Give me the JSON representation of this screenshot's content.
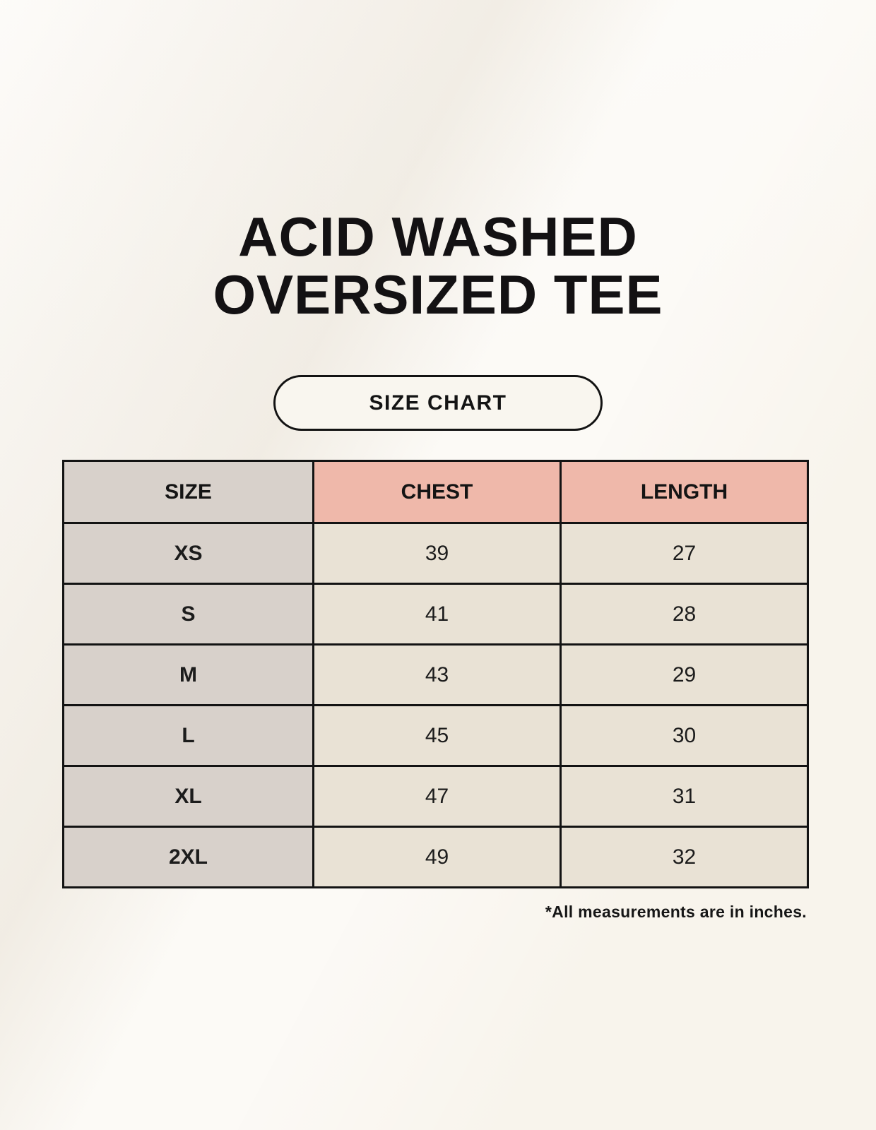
{
  "page": {
    "title_line1": "ACID WASHED",
    "title_line2": "OVERSIZED TEE",
    "button_label": "SIZE CHART",
    "footnote": "*All measurements are in inches."
  },
  "colors": {
    "background_cream": "#f8f4ec",
    "header_pink": "#efb8aa",
    "size_column_gray": "#d8d1cb",
    "cell_beige": "#e9e2d5",
    "table_border_black": "#131313",
    "text_black": "#141414"
  },
  "chart_data": {
    "type": "table",
    "title": "ACID WASHED OVERSIZED TEE",
    "subtitle": "SIZE CHART",
    "columns": [
      "SIZE",
      "CHEST",
      "LENGTH"
    ],
    "rows": [
      [
        "XS",
        "39",
        "27"
      ],
      [
        "S",
        "41",
        "28"
      ],
      [
        "M",
        "43",
        "29"
      ],
      [
        "L",
        "45",
        "30"
      ],
      [
        "XL",
        "47",
        "31"
      ],
      [
        "2XL",
        "49",
        "32"
      ]
    ],
    "units_note": "*All measurements are in inches.",
    "layout": {
      "header_row_fill": [
        "gray",
        "pink",
        "pink"
      ],
      "first_column_fill": "gray",
      "grid": "black 3px solid"
    }
  }
}
